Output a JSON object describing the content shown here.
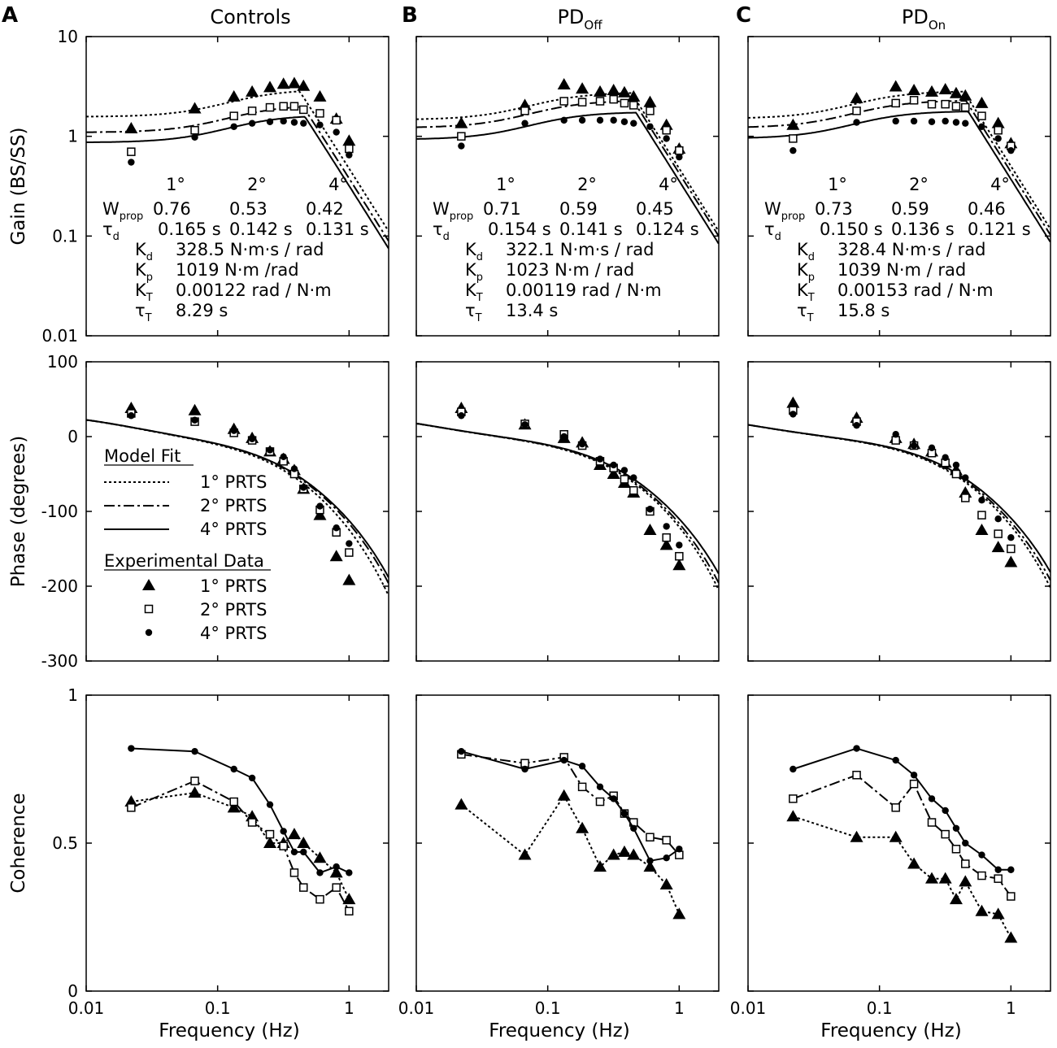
{
  "figure": {
    "panel_labels": [
      "A",
      "B",
      "C"
    ],
    "column_titles": [
      {
        "base": "Controls",
        "sub": ""
      },
      {
        "base": "PD",
        "sub": "Off"
      },
      {
        "base": "PD",
        "sub": "On"
      }
    ],
    "x_axis": {
      "label": "Frequency (Hz)",
      "ticks": [
        {
          "v": 0.01,
          "label": "0.01"
        },
        {
          "v": 0.1,
          "label": "0.1"
        },
        {
          "v": 1,
          "label": "1"
        }
      ],
      "range": [
        0.01,
        2
      ]
    },
    "gain_axis": {
      "label": "Gain (BS/SS)",
      "ticks": [
        {
          "v": 0.01,
          "label": "0.01"
        },
        {
          "v": 0.1,
          "label": "0.1"
        },
        {
          "v": 1,
          "label": "1"
        },
        {
          "v": 10,
          "label": "10"
        }
      ],
      "range": [
        0.01,
        10
      ]
    },
    "phase_axis": {
      "label": "Phase (degrees)",
      "ticks": [
        {
          "v": 100,
          "label": "100"
        },
        {
          "v": 0,
          "label": "0"
        },
        {
          "v": -100,
          "label": "-100"
        },
        {
          "v": -200,
          "label": "-200"
        },
        {
          "v": -300,
          "label": "-300"
        }
      ],
      "range": [
        -300,
        100
      ]
    },
    "coherence_axis": {
      "label": "Coherence",
      "ticks": [
        {
          "v": 1,
          "label": "1"
        },
        {
          "v": 0.5,
          "label": "0.5"
        },
        {
          "v": 0,
          "label": "0"
        }
      ],
      "range": [
        0,
        1
      ]
    },
    "legend": {
      "model_title": "Model Fit",
      "model_items": [
        {
          "style": "dotted",
          "label": "1° PRTS"
        },
        {
          "style": "dashdot",
          "label": "2° PRTS"
        },
        {
          "style": "solid",
          "label": "4° PRTS"
        }
      ],
      "data_title": "Experimental Data",
      "data_items": [
        {
          "marker": "triangle",
          "label": "1° PRTS"
        },
        {
          "marker": "square",
          "label": "2° PRTS"
        },
        {
          "marker": "circle",
          "label": "4° PRTS"
        }
      ]
    },
    "param_labels": {
      "amplitudes": [
        "1°",
        "2°",
        "4°"
      ],
      "wprop": {
        "base": "W",
        "sub": "prop"
      },
      "tau_d": {
        "base": "τ",
        "sub": "d"
      },
      "kd": {
        "base": "K",
        "sub": "d"
      },
      "kp": {
        "base": "K",
        "sub": "p"
      },
      "kt": {
        "base": "K",
        "sub": "T"
      },
      "tau_t": {
        "base": "τ",
        "sub": "T"
      }
    },
    "params": [
      {
        "wprop": [
          "0.76",
          "0.53",
          "0.42"
        ],
        "tau_d": [
          "0.165 s",
          "0.142 s",
          "0.131 s"
        ],
        "kd": "328.5  N·m·s / rad",
        "kp": "1019  N·m /rad",
        "kt": "0.00122 rad / N·m",
        "tau_t": "8.29 s"
      },
      {
        "wprop": [
          "0.71",
          "0.59",
          "0.45"
        ],
        "tau_d": [
          "0.154 s",
          "0.141 s",
          "0.124 s"
        ],
        "kd": "322.1  N·m·s / rad",
        "kp": "1023  N·m / rad",
        "kt": "0.00119 rad / N·m",
        "tau_t": "13.4 s"
      },
      {
        "wprop": [
          "0.73",
          "0.59",
          "0.46"
        ],
        "tau_d": [
          "0.150 s",
          "0.136 s",
          "0.121 s"
        ],
        "kd": "328.4  N·m·s / rad",
        "kp": "1039  N·m / rad",
        "kt": "0.00153 rad / N·m",
        "tau_t": "15.8 s"
      }
    ]
  },
  "chart_data": [
    {
      "type": "scatter",
      "title": "Controls",
      "panel": "A",
      "frequencies_hz": {
        "1deg": [
          0.022,
          0.067,
          0.133,
          0.183,
          0.25,
          0.317,
          0.383,
          0.45,
          0.6,
          0.8,
          1.0
        ],
        "2deg": [
          0.022,
          0.067,
          0.133,
          0.183,
          0.25,
          0.317,
          0.383,
          0.45,
          0.6,
          0.8,
          1.0
        ],
        "4deg": [
          0.022,
          0.067,
          0.133,
          0.183,
          0.25,
          0.317,
          0.383,
          0.45,
          0.6,
          0.8,
          1.0
        ]
      },
      "gain": {
        "xlabel": "Frequency (Hz)",
        "ylabel": "Gain (BS/SS)",
        "yscale": "log",
        "ylim": [
          0.01,
          10
        ],
        "series": [
          {
            "name": "1° PRTS",
            "marker": "triangle",
            "values": [
              1.2,
              1.9,
              2.5,
              2.8,
              3.1,
              3.35,
              3.4,
              3.2,
              2.5,
              1.5,
              0.9
            ]
          },
          {
            "name": "2° PRTS",
            "marker": "square",
            "values": [
              0.7,
              1.15,
              1.6,
              1.8,
              1.95,
              2.0,
              2.0,
              1.85,
              1.7,
              1.45,
              0.75
            ]
          },
          {
            "name": "4° PRTS",
            "marker": "circle",
            "values": [
              0.55,
              0.98,
              1.25,
              1.35,
              1.4,
              1.42,
              1.38,
              1.35,
              1.3,
              1.1,
              0.65
            ]
          }
        ],
        "model": [
          {
            "name": "1° PRTS",
            "style": "dotted",
            "Kp": 1019,
            "Kd": 328.5,
            "td": 0.165,
            "W": 0.76,
            "KT": 0.00122,
            "tauT": 8.29
          },
          {
            "name": "2° PRTS",
            "style": "dashdot",
            "Kp": 1019,
            "Kd": 328.5,
            "td": 0.142,
            "W": 0.53,
            "KT": 0.00122,
            "tauT": 8.29
          },
          {
            "name": "4° PRTS",
            "style": "solid",
            "Kp": 1019,
            "Kd": 328.5,
            "td": 0.131,
            "W": 0.42,
            "KT": 0.00122,
            "tauT": 8.29
          }
        ]
      },
      "phase": {
        "xlabel": "Frequency (Hz)",
        "ylabel": "Phase (degrees)",
        "ylim": [
          -300,
          100
        ],
        "series": [
          {
            "name": "1° PRTS",
            "marker": "triangle",
            "values": [
              38,
              35,
              10,
              -2,
              -20,
              -30,
              -45,
              -70,
              -105,
              -160,
              -192
            ]
          },
          {
            "name": "2° PRTS",
            "marker": "square",
            "values": [
              31,
              20,
              5,
              -5,
              -20,
              -33,
              -50,
              -70,
              -98,
              -128,
              -155
            ]
          },
          {
            "name": "4° PRTS",
            "marker": "circle",
            "values": [
              28,
              22,
              8,
              -3,
              -18,
              -27,
              -43,
              -68,
              -93,
              -122,
              -143
            ]
          }
        ]
      },
      "coherence": {
        "xlabel": "Frequency (Hz)",
        "ylabel": "Coherence",
        "ylim": [
          0,
          1
        ],
        "series": [
          {
            "name": "1° PRTS",
            "marker": "triangle",
            "style": "dotted",
            "values": [
              0.64,
              0.67,
              0.62,
              0.59,
              0.5,
              0.5,
              0.53,
              0.5,
              0.45,
              0.4,
              0.31
            ]
          },
          {
            "name": "2° PRTS",
            "marker": "square",
            "style": "dashdot",
            "values": [
              0.62,
              0.71,
              0.64,
              0.57,
              0.53,
              0.49,
              0.4,
              0.35,
              0.31,
              0.35,
              0.27
            ]
          },
          {
            "name": "4° PRTS",
            "marker": "circle",
            "style": "solid",
            "values": [
              0.82,
              0.81,
              0.75,
              0.72,
              0.63,
              0.54,
              0.47,
              0.47,
              0.4,
              0.42,
              0.4
            ]
          }
        ]
      }
    },
    {
      "type": "scatter",
      "title": "PDOff",
      "panel": "B",
      "frequencies_hz": {
        "1deg": [
          0.022,
          0.067,
          0.133,
          0.183,
          0.25,
          0.317,
          0.383,
          0.45,
          0.6,
          0.8,
          1.0
        ],
        "2deg": [
          0.022,
          0.067,
          0.133,
          0.183,
          0.25,
          0.317,
          0.383,
          0.45,
          0.6,
          0.8,
          1.0
        ],
        "4deg": [
          0.022,
          0.067,
          0.133,
          0.183,
          0.25,
          0.317,
          0.383,
          0.45,
          0.6,
          0.8,
          1.0
        ]
      },
      "gain": {
        "xlabel": "Frequency (Hz)",
        "ylabel": "Gain (BS/SS)",
        "yscale": "log",
        "ylim": [
          0.01,
          10
        ],
        "series": [
          {
            "name": "1° PRTS",
            "marker": "triangle",
            "values": [
              1.35,
              2.05,
              3.3,
              3.0,
              2.8,
              2.9,
              2.75,
              2.5,
              2.2,
              1.3,
              0.75
            ]
          },
          {
            "name": "2° PRTS",
            "marker": "square",
            "values": [
              1.0,
              1.8,
              2.25,
              2.2,
              2.25,
              2.35,
              2.15,
              2.05,
              1.8,
              1.15,
              0.72
            ]
          },
          {
            "name": "4° PRTS",
            "marker": "circle",
            "values": [
              0.8,
              1.35,
              1.45,
              1.45,
              1.45,
              1.45,
              1.4,
              1.35,
              1.25,
              0.95,
              0.62
            ]
          }
        ],
        "model": [
          {
            "name": "1° PRTS",
            "style": "dotted",
            "Kp": 1023,
            "Kd": 322.1,
            "td": 0.154,
            "W": 0.71,
            "KT": 0.00119,
            "tauT": 13.4
          },
          {
            "name": "2° PRTS",
            "style": "dashdot",
            "Kp": 1023,
            "Kd": 322.1,
            "td": 0.141,
            "W": 0.59,
            "KT": 0.00119,
            "tauT": 13.4
          },
          {
            "name": "4° PRTS",
            "style": "solid",
            "Kp": 1023,
            "Kd": 322.1,
            "td": 0.124,
            "W": 0.45,
            "KT": 0.00119,
            "tauT": 13.4
          }
        ]
      },
      "phase": {
        "xlabel": "Frequency (Hz)",
        "ylabel": "Phase (degrees)",
        "ylim": [
          -300,
          100
        ],
        "series": [
          {
            "name": "1° PRTS",
            "marker": "triangle",
            "values": [
              38,
              16,
              -2,
              -8,
              -38,
              -50,
              -62,
              -75,
              -125,
              -145,
              -172
            ]
          },
          {
            "name": "2° PRTS",
            "marker": "square",
            "values": [
              33,
              17,
              3,
              -12,
              -33,
              -42,
              -57,
              -72,
              -100,
              -135,
              -160
            ]
          },
          {
            "name": "4° PRTS",
            "marker": "circle",
            "values": [
              28,
              16,
              0,
              -10,
              -30,
              -38,
              -45,
              -55,
              -97,
              -120,
              -145
            ]
          }
        ]
      },
      "coherence": {
        "xlabel": "Frequency (Hz)",
        "ylabel": "Coherence",
        "ylim": [
          0,
          1
        ],
        "series": [
          {
            "name": "1° PRTS",
            "marker": "triangle",
            "style": "dotted",
            "values": [
              0.63,
              0.46,
              0.66,
              0.55,
              0.42,
              0.46,
              0.47,
              0.46,
              0.42,
              0.36,
              0.26
            ]
          },
          {
            "name": "2° PRTS",
            "marker": "square",
            "style": "dashdot",
            "values": [
              0.8,
              0.77,
              0.79,
              0.69,
              0.64,
              0.66,
              0.6,
              0.57,
              0.52,
              0.51,
              0.46
            ]
          },
          {
            "name": "4° PRTS",
            "marker": "circle",
            "style": "solid",
            "values": [
              0.81,
              0.75,
              0.78,
              0.76,
              0.69,
              0.65,
              0.6,
              0.55,
              0.44,
              0.45,
              0.48
            ]
          }
        ]
      }
    },
    {
      "type": "scatter",
      "title": "PDOn",
      "panel": "C",
      "frequencies_hz": {
        "1deg": [
          0.022,
          0.067,
          0.133,
          0.183,
          0.25,
          0.317,
          0.383,
          0.45,
          0.6,
          0.8,
          1.0
        ],
        "2deg": [
          0.022,
          0.067,
          0.133,
          0.183,
          0.25,
          0.317,
          0.383,
          0.45,
          0.6,
          0.8,
          1.0
        ],
        "4deg": [
          0.022,
          0.067,
          0.133,
          0.183,
          0.25,
          0.317,
          0.383,
          0.45,
          0.6,
          0.8,
          1.0
        ]
      },
      "gain": {
        "xlabel": "Frequency (Hz)",
        "ylabel": "Gain (BS/SS)",
        "yscale": "log",
        "ylim": [
          0.01,
          10
        ],
        "series": [
          {
            "name": "1° PRTS",
            "marker": "triangle",
            "values": [
              1.3,
              2.4,
              3.15,
              2.9,
              2.8,
              2.95,
              2.7,
              2.55,
              2.15,
              1.35,
              0.85
            ]
          },
          {
            "name": "2° PRTS",
            "marker": "square",
            "values": [
              0.95,
              1.8,
              2.15,
              2.3,
              2.1,
              2.1,
              2.0,
              1.95,
              1.6,
              1.15,
              0.8
            ]
          },
          {
            "name": "4° PRTS",
            "marker": "circle",
            "values": [
              0.72,
              1.38,
              1.42,
              1.42,
              1.4,
              1.42,
              1.38,
              1.35,
              1.25,
              0.95,
              0.72
            ]
          }
        ],
        "model": [
          {
            "name": "1° PRTS",
            "style": "dotted",
            "Kp": 1039,
            "Kd": 328.4,
            "td": 0.15,
            "W": 0.73,
            "KT": 0.00153,
            "tauT": 15.8
          },
          {
            "name": "2° PRTS",
            "style": "dashdot",
            "Kp": 1039,
            "Kd": 328.4,
            "td": 0.136,
            "W": 0.59,
            "KT": 0.00153,
            "tauT": 15.8
          },
          {
            "name": "4° PRTS",
            "style": "solid",
            "Kp": 1039,
            "Kd": 328.4,
            "td": 0.121,
            "W": 0.46,
            "KT": 0.00153,
            "tauT": 15.8
          }
        ]
      },
      "phase": {
        "xlabel": "Frequency (Hz)",
        "ylabel": "Phase (degrees)",
        "ylim": [
          -300,
          100
        ],
        "series": [
          {
            "name": "1° PRTS",
            "marker": "triangle",
            "values": [
              45,
              25,
              -2,
              -10,
              -20,
              -35,
              -45,
              -75,
              -125,
              -148,
              -168
            ]
          },
          {
            "name": "2° PRTS",
            "marker": "square",
            "values": [
              35,
              20,
              -5,
              -12,
              -22,
              -35,
              -50,
              -82,
              -105,
              -130,
              -150
            ]
          },
          {
            "name": "4° PRTS",
            "marker": "circle",
            "values": [
              30,
              15,
              3,
              -12,
              -15,
              -28,
              -38,
              -55,
              -85,
              -110,
              -135
            ]
          }
        ]
      },
      "coherence": {
        "xlabel": "Frequency (Hz)",
        "ylabel": "Coherence",
        "ylim": [
          0,
          1
        ],
        "series": [
          {
            "name": "1° PRTS",
            "marker": "triangle",
            "style": "dotted",
            "values": [
              0.59,
              0.52,
              0.52,
              0.43,
              0.38,
              0.38,
              0.31,
              0.37,
              0.27,
              0.26,
              0.18
            ]
          },
          {
            "name": "2° PRTS",
            "marker": "square",
            "style": "dashdot",
            "values": [
              0.65,
              0.73,
              0.62,
              0.7,
              0.57,
              0.53,
              0.48,
              0.43,
              0.39,
              0.38,
              0.32
            ]
          },
          {
            "name": "4° PRTS",
            "marker": "circle",
            "style": "solid",
            "values": [
              0.75,
              0.82,
              0.78,
              0.73,
              0.65,
              0.61,
              0.55,
              0.5,
              0.46,
              0.41,
              0.41
            ]
          }
        ]
      }
    }
  ]
}
